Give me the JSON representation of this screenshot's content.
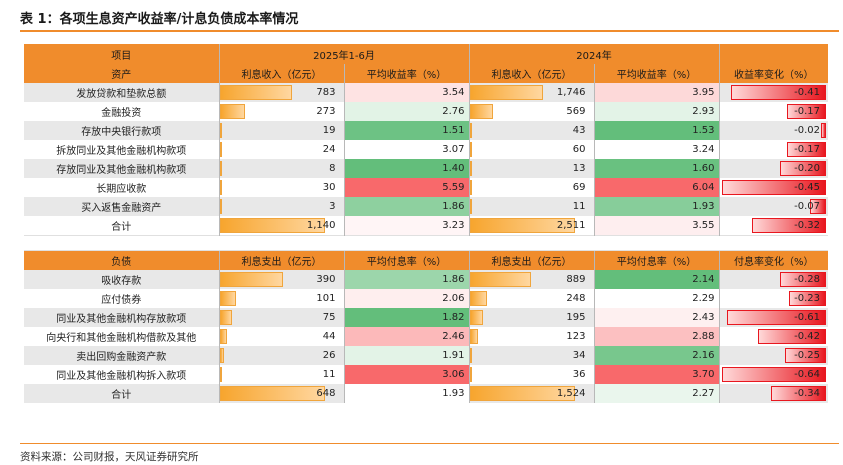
{
  "title": "表 1：各项生息资产收益率/计息负债成本率情况",
  "source": "资料来源：公司财报，天风证券研究所",
  "header": {
    "item": "项目",
    "period1": "2025年1-6月",
    "period2": "2024年"
  },
  "colors": {
    "accent": "#f08c2c",
    "green_strong": "#63be7b",
    "red_strong": "#f8696b",
    "neg_bar": "#e8171f",
    "pos_bar": "#f7a52e"
  },
  "assets": {
    "headers": [
      "资产",
      "利息收入（亿元）",
      "平均收益率（%）",
      "利息收入（亿元）",
      "平均收益率（%）",
      "收益率变化（%）"
    ],
    "rows": [
      {
        "name": "发放贷款和垫款总额",
        "inc_2025": "783",
        "yield_2025": "3.54",
        "inc_2024": "1,746",
        "yield_2024": "3.95",
        "change": "-0.41",
        "v1": 783,
        "y1": 3.54,
        "v2": 1746,
        "y2": 3.95,
        "chg": -0.41
      },
      {
        "name": "金融投资",
        "inc_2025": "273",
        "yield_2025": "2.76",
        "inc_2024": "569",
        "yield_2024": "2.93",
        "change": "-0.17",
        "v1": 273,
        "y1": 2.76,
        "v2": 569,
        "y2": 2.93,
        "chg": -0.17
      },
      {
        "name": "存放中央银行款项",
        "inc_2025": "19",
        "yield_2025": "1.51",
        "inc_2024": "43",
        "yield_2024": "1.53",
        "change": "-0.02",
        "v1": 19,
        "y1": 1.51,
        "v2": 43,
        "y2": 1.53,
        "chg": -0.02
      },
      {
        "name": "拆放同业及其他金融机构款项",
        "inc_2025": "24",
        "yield_2025": "3.07",
        "inc_2024": "60",
        "yield_2024": "3.24",
        "change": "-0.17",
        "v1": 24,
        "y1": 3.07,
        "v2": 60,
        "y2": 3.24,
        "chg": -0.17
      },
      {
        "name": "存放同业及其他金融机构款项",
        "inc_2025": "8",
        "yield_2025": "1.40",
        "inc_2024": "13",
        "yield_2024": "1.60",
        "change": "-0.20",
        "v1": 8,
        "y1": 1.4,
        "v2": 13,
        "y2": 1.6,
        "chg": -0.2
      },
      {
        "name": "长期应收款",
        "inc_2025": "30",
        "yield_2025": "5.59",
        "inc_2024": "69",
        "yield_2024": "6.04",
        "change": "-0.45",
        "v1": 30,
        "y1": 5.59,
        "v2": 69,
        "y2": 6.04,
        "chg": -0.45
      },
      {
        "name": "买入返售金融资产",
        "inc_2025": "3",
        "yield_2025": "1.86",
        "inc_2024": "11",
        "yield_2024": "1.93",
        "change": "-0.07",
        "v1": 3,
        "y1": 1.86,
        "v2": 11,
        "y2": 1.93,
        "chg": -0.07
      },
      {
        "name": "合计",
        "inc_2025": "1,140",
        "yield_2025": "3.23",
        "inc_2024": "2,511",
        "yield_2024": "3.55",
        "change": "-0.32",
        "v1": 1140,
        "y1": 3.23,
        "v2": 2511,
        "y2": 3.55,
        "chg": -0.32
      }
    ]
  },
  "liabilities": {
    "headers": [
      "负债",
      "利息支出（亿元）",
      "平均付息率（%）",
      "利息支出（亿元）",
      "平均付息率（%）",
      "付息率变化（%）"
    ],
    "rows": [
      {
        "name": "吸收存款",
        "inc_2025": "390",
        "yield_2025": "1.86",
        "inc_2024": "889",
        "yield_2024": "2.14",
        "change": "-0.28",
        "v1": 390,
        "y1": 1.86,
        "v2": 889,
        "y2": 2.14,
        "chg": -0.28
      },
      {
        "name": "应付债券",
        "inc_2025": "101",
        "yield_2025": "2.06",
        "inc_2024": "248",
        "yield_2024": "2.29",
        "change": "-0.23",
        "v1": 101,
        "y1": 2.06,
        "v2": 248,
        "y2": 2.29,
        "chg": -0.23
      },
      {
        "name": "同业及其他金融机构存放款项",
        "inc_2025": "75",
        "yield_2025": "1.82",
        "inc_2024": "195",
        "yield_2024": "2.43",
        "change": "-0.61",
        "v1": 75,
        "y1": 1.82,
        "v2": 195,
        "y2": 2.43,
        "chg": -0.61
      },
      {
        "name": "向央行和其他金融机构借款及其他",
        "inc_2025": "44",
        "yield_2025": "2.46",
        "inc_2024": "123",
        "yield_2024": "2.88",
        "change": "-0.42",
        "v1": 44,
        "y1": 2.46,
        "v2": 123,
        "y2": 2.88,
        "chg": -0.42
      },
      {
        "name": "卖出回购金融资产款",
        "inc_2025": "26",
        "yield_2025": "1.91",
        "inc_2024": "34",
        "yield_2024": "2.16",
        "change": "-0.25",
        "v1": 26,
        "y1": 1.91,
        "v2": 34,
        "y2": 2.16,
        "chg": -0.25
      },
      {
        "name": "同业及其他金融机构拆入款项",
        "inc_2025": "11",
        "yield_2025": "3.06",
        "inc_2024": "36",
        "yield_2024": "3.70",
        "change": "-0.64",
        "v1": 11,
        "y1": 3.06,
        "v2": 36,
        "y2": 3.7,
        "chg": -0.64
      },
      {
        "name": "合计",
        "inc_2025": "648",
        "yield_2025": "1.93",
        "inc_2024": "1,524",
        "yield_2024": "2.27",
        "change": "-0.34",
        "v1": 648,
        "y1": 1.93,
        "v2": 1524,
        "y2": 2.27,
        "chg": -0.34
      }
    ]
  }
}
